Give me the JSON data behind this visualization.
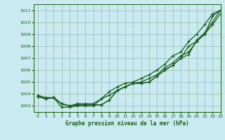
{
  "title": "Graphe pression niveau de la mer (hPa)",
  "bg_color": "#c8eaf0",
  "grid_color": "#99bbaa",
  "line_color": "#1a5c1a",
  "xlim": [
    -0.5,
    23
  ],
  "ylim": [
    1002.5,
    1011.5
  ],
  "yticks": [
    1003,
    1004,
    1005,
    1006,
    1007,
    1008,
    1009,
    1010,
    1011
  ],
  "xticks": [
    0,
    1,
    2,
    3,
    4,
    5,
    6,
    7,
    8,
    9,
    10,
    11,
    12,
    13,
    14,
    15,
    16,
    17,
    18,
    19,
    20,
    21,
    22,
    23
  ],
  "series": [
    [
      1003.8,
      1003.6,
      1003.7,
      1003.2,
      1003.0,
      1003.1,
      1003.1,
      1003.1,
      1003.1,
      1003.5,
      1004.3,
      1004.6,
      1004.9,
      1004.9,
      1005.0,
      1005.5,
      1006.0,
      1006.4,
      1007.0,
      1007.3,
      1008.5,
      1009.1,
      1010.0,
      1011.0
    ],
    [
      1003.8,
      1003.6,
      1003.7,
      1003.2,
      1003.0,
      1003.1,
      1003.1,
      1003.1,
      1003.1,
      1003.5,
      1004.3,
      1004.6,
      1004.9,
      1004.9,
      1005.0,
      1005.5,
      1006.0,
      1006.4,
      1007.0,
      1008.0,
      1008.4,
      1009.0,
      1010.5,
      1011.0
    ],
    [
      1003.8,
      1003.6,
      1003.7,
      1003.2,
      1003.0,
      1003.2,
      1003.2,
      1003.2,
      1003.6,
      1004.2,
      1004.6,
      1004.9,
      1005.0,
      1005.3,
      1005.6,
      1006.0,
      1006.5,
      1007.2,
      1007.5,
      1008.4,
      1009.0,
      1009.8,
      1010.7,
      1011.0
    ],
    [
      1003.9,
      1003.7,
      1003.7,
      1002.9,
      1002.9,
      1003.0,
      1003.0,
      1003.0,
      1003.6,
      1003.9,
      1004.3,
      1004.6,
      1004.9,
      1005.0,
      1005.3,
      1005.6,
      1006.2,
      1006.6,
      1007.2,
      1007.5,
      1008.4,
      1009.0,
      1009.8,
      1010.7
    ]
  ]
}
